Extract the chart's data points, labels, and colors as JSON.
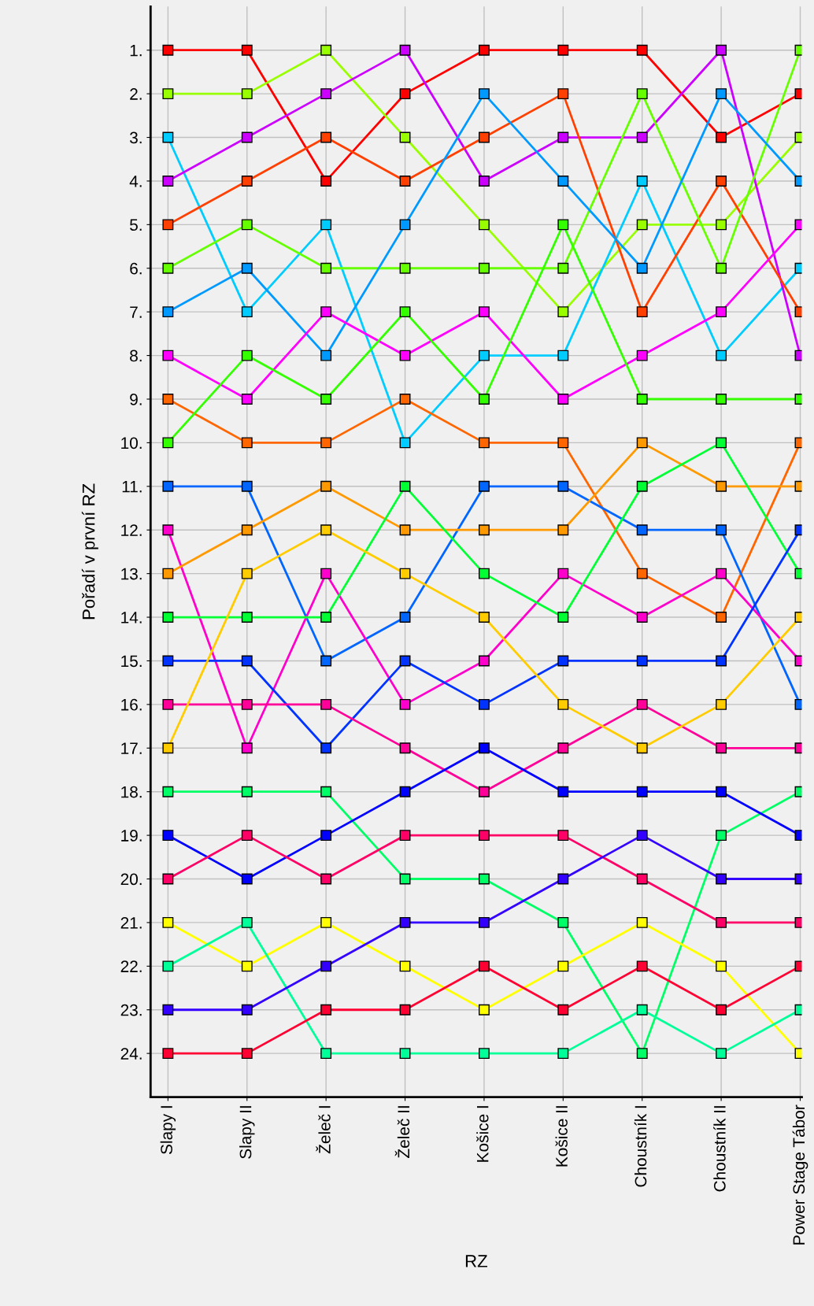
{
  "chart_data": {
    "type": "line",
    "xlabel": "RZ",
    "ylabel": "Pořadí v první RZ",
    "categories": [
      "Slapy I",
      "Slapy II",
      "Želeč I",
      "Želeč II",
      "Košice I",
      "Košice II",
      "Choustník I",
      "Choustník II",
      "Power Stage Tábor"
    ],
    "ylim": [
      25,
      0
    ],
    "yticks": [
      {
        "value": 1,
        "label": "1."
      },
      {
        "value": 2,
        "label": "2."
      },
      {
        "value": 3,
        "label": "3."
      },
      {
        "value": 4,
        "label": "4."
      },
      {
        "value": 5,
        "label": "5."
      },
      {
        "value": 6,
        "label": "6."
      },
      {
        "value": 7,
        "label": "7."
      },
      {
        "value": 8,
        "label": "8."
      },
      {
        "value": 9,
        "label": "9."
      },
      {
        "value": 10,
        "label": "10."
      },
      {
        "value": 11,
        "label": "11."
      },
      {
        "value": 12,
        "label": "12."
      },
      {
        "value": 13,
        "label": "13."
      },
      {
        "value": 14,
        "label": "14."
      },
      {
        "value": 15,
        "label": "15."
      },
      {
        "value": 16,
        "label": "16."
      },
      {
        "value": 17,
        "label": "17."
      },
      {
        "value": 18,
        "label": "18."
      },
      {
        "value": 19,
        "label": "19."
      },
      {
        "value": 20,
        "label": "20."
      },
      {
        "value": 21,
        "label": "21."
      },
      {
        "value": 22,
        "label": "22."
      },
      {
        "value": 23,
        "label": "23."
      },
      {
        "value": 24,
        "label": "24."
      }
    ],
    "grid": true,
    "marker": "square",
    "line_style": "solid",
    "legend": false,
    "series": [
      {
        "color": "#ff0000",
        "values": [
          1,
          1,
          4,
          2,
          1,
          1,
          1,
          3,
          2
        ]
      },
      {
        "color": "#99ff00",
        "values": [
          2,
          2,
          1,
          3,
          5,
          7,
          5,
          5,
          3
        ]
      },
      {
        "color": "#00ccff",
        "values": [
          3,
          7,
          5,
          10,
          8,
          8,
          4,
          8,
          6
        ]
      },
      {
        "color": "#cc00ff",
        "values": [
          4,
          3,
          2,
          1,
          4,
          3,
          3,
          1,
          8
        ]
      },
      {
        "color": "#ff4000",
        "values": [
          5,
          4,
          3,
          4,
          3,
          2,
          7,
          4,
          7
        ]
      },
      {
        "color": "#66ff00",
        "values": [
          6,
          5,
          6,
          6,
          6,
          6,
          2,
          6,
          1
        ]
      },
      {
        "color": "#0099ff",
        "values": [
          7,
          6,
          8,
          5,
          2,
          4,
          6,
          2,
          4
        ]
      },
      {
        "color": "#ff00ff",
        "values": [
          8,
          9,
          7,
          8,
          7,
          9,
          8,
          7,
          5
        ]
      },
      {
        "color": "#ff6600",
        "values": [
          9,
          10,
          10,
          9,
          10,
          10,
          13,
          14,
          10
        ]
      },
      {
        "color": "#33ff00",
        "values": [
          10,
          8,
          9,
          7,
          9,
          5,
          9,
          9,
          9
        ]
      },
      {
        "color": "#0066ff",
        "values": [
          11,
          11,
          15,
          14,
          11,
          11,
          12,
          12,
          16
        ]
      },
      {
        "color": "#ff00cc",
        "values": [
          12,
          17,
          13,
          16,
          15,
          13,
          14,
          13,
          15
        ]
      },
      {
        "color": "#ff9900",
        "values": [
          13,
          12,
          11,
          12,
          12,
          12,
          10,
          11,
          11
        ]
      },
      {
        "color": "#00ff33",
        "values": [
          14,
          14,
          14,
          11,
          13,
          14,
          11,
          10,
          13
        ]
      },
      {
        "color": "#0033ff",
        "values": [
          15,
          15,
          17,
          15,
          16,
          15,
          15,
          15,
          12
        ]
      },
      {
        "color": "#ff0099",
        "values": [
          16,
          16,
          16,
          17,
          18,
          17,
          16,
          17,
          17
        ]
      },
      {
        "color": "#ffcc00",
        "values": [
          17,
          13,
          12,
          13,
          14,
          16,
          17,
          16,
          14
        ]
      },
      {
        "color": "#00ff66",
        "values": [
          18,
          18,
          18,
          20,
          20,
          21,
          24,
          19,
          18
        ]
      },
      {
        "color": "#0000ff",
        "values": [
          19,
          20,
          19,
          18,
          17,
          18,
          18,
          18,
          19
        ]
      },
      {
        "color": "#ff0066",
        "values": [
          20,
          19,
          20,
          19,
          19,
          19,
          20,
          21,
          21
        ]
      },
      {
        "color": "#ffff00",
        "values": [
          21,
          22,
          21,
          22,
          23,
          22,
          21,
          22,
          24
        ]
      },
      {
        "color": "#00ff99",
        "values": [
          22,
          21,
          24,
          24,
          24,
          24,
          23,
          24,
          23
        ]
      },
      {
        "color": "#3300ff",
        "values": [
          23,
          23,
          22,
          21,
          21,
          20,
          19,
          20,
          20
        ]
      },
      {
        "color": "#ff0033",
        "values": [
          24,
          24,
          23,
          23,
          22,
          23,
          22,
          23,
          22
        ]
      }
    ]
  }
}
